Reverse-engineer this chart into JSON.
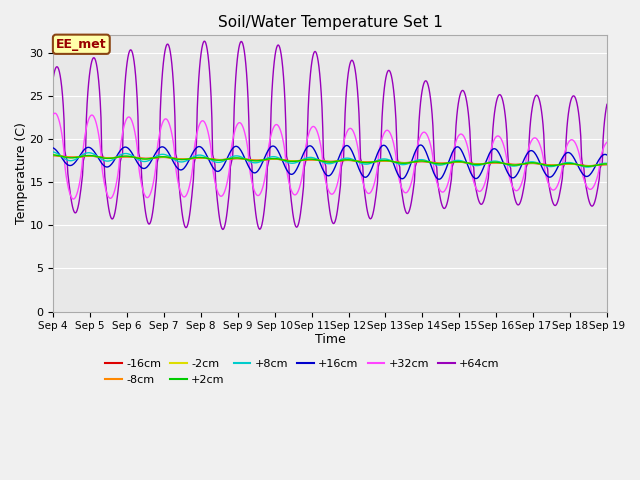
{
  "title": "Soil/Water Temperature Set 1",
  "xlabel": "Time",
  "ylabel": "Temperature (C)",
  "ylim": [
    0,
    32
  ],
  "yticks": [
    0,
    5,
    10,
    15,
    20,
    25,
    30
  ],
  "plot_bg": "#e8e8e8",
  "fig_bg": "#f0f0f0",
  "annotation_text": "EE_met",
  "annotation_bg": "#ffffaa",
  "annotation_border": "#8b4513",
  "series_colors": {
    "-16cm": "#dd0000",
    "-8cm": "#ff8800",
    "-2cm": "#dddd00",
    "+2cm": "#00cc00",
    "+8cm": "#00cccc",
    "+16cm": "#0000cc",
    "+32cm": "#ff44ff",
    "+64cm": "#9900bb"
  },
  "n_points": 720,
  "days": 15
}
